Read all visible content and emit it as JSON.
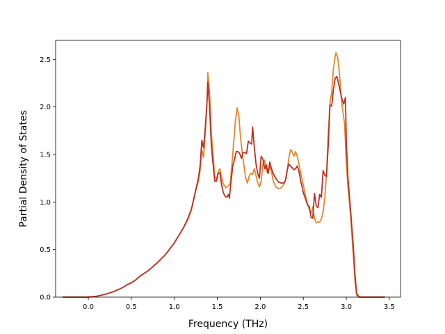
{
  "chart_data": {
    "type": "line",
    "xlabel": "Frequency (THz)",
    "ylabel": "Partial Density of States",
    "xlim": [
      -0.38,
      3.63
    ],
    "ylim": [
      0.0,
      2.7
    ],
    "xticks": [
      "0.0",
      "0.5",
      "1.0",
      "1.5",
      "2.0",
      "2.5",
      "3.0",
      "3.5"
    ],
    "yticks": [
      "0.0",
      "0.5",
      "1.0",
      "1.5",
      "2.0",
      "2.5"
    ],
    "grid": false,
    "legend": "none",
    "series": [
      {
        "color": "#e6862a",
        "points": [
          [
            -0.3,
            0
          ],
          [
            -0.1,
            0
          ],
          [
            0.0,
            0.0
          ],
          [
            0.1,
            0.01
          ],
          [
            0.2,
            0.03
          ],
          [
            0.3,
            0.06
          ],
          [
            0.4,
            0.1
          ],
          [
            0.45,
            0.13
          ],
          [
            0.5,
            0.15
          ],
          [
            0.55,
            0.18
          ],
          [
            0.6,
            0.22
          ],
          [
            0.7,
            0.28
          ],
          [
            0.8,
            0.36
          ],
          [
            0.9,
            0.45
          ],
          [
            1.0,
            0.57
          ],
          [
            1.1,
            0.72
          ],
          [
            1.15,
            0.8
          ],
          [
            1.2,
            0.92
          ],
          [
            1.25,
            1.12
          ],
          [
            1.28,
            1.22
          ],
          [
            1.3,
            1.33
          ],
          [
            1.32,
            1.55
          ],
          [
            1.34,
            1.47
          ],
          [
            1.36,
            1.72
          ],
          [
            1.38,
            2.05
          ],
          [
            1.39,
            2.36
          ],
          [
            1.41,
            2.15
          ],
          [
            1.43,
            1.72
          ],
          [
            1.45,
            1.5
          ],
          [
            1.47,
            1.27
          ],
          [
            1.49,
            1.24
          ],
          [
            1.51,
            1.32
          ],
          [
            1.53,
            1.35
          ],
          [
            1.55,
            1.26
          ],
          [
            1.57,
            1.19
          ],
          [
            1.6,
            1.15
          ],
          [
            1.63,
            1.17
          ],
          [
            1.65,
            1.2
          ],
          [
            1.67,
            1.4
          ],
          [
            1.69,
            1.62
          ],
          [
            1.71,
            1.85
          ],
          [
            1.73,
            1.99
          ],
          [
            1.75,
            1.9
          ],
          [
            1.77,
            1.68
          ],
          [
            1.79,
            1.52
          ],
          [
            1.81,
            1.38
          ],
          [
            1.83,
            1.25
          ],
          [
            1.85,
            1.2
          ],
          [
            1.87,
            1.27
          ],
          [
            1.89,
            1.3
          ],
          [
            1.91,
            1.29
          ],
          [
            1.93,
            1.35
          ],
          [
            1.95,
            1.28
          ],
          [
            1.97,
            1.2
          ],
          [
            1.99,
            1.16
          ],
          [
            2.01,
            1.22
          ],
          [
            2.03,
            1.4
          ],
          [
            2.05,
            1.44
          ],
          [
            2.07,
            1.33
          ],
          [
            2.09,
            1.3
          ],
          [
            2.11,
            1.37
          ],
          [
            2.13,
            1.32
          ],
          [
            2.15,
            1.22
          ],
          [
            2.18,
            1.16
          ],
          [
            2.21,
            1.14
          ],
          [
            2.24,
            1.15
          ],
          [
            2.27,
            1.18
          ],
          [
            2.3,
            1.25
          ],
          [
            2.33,
            1.45
          ],
          [
            2.35,
            1.55
          ],
          [
            2.37,
            1.53
          ],
          [
            2.39,
            1.48
          ],
          [
            2.41,
            1.53
          ],
          [
            2.43,
            1.48
          ],
          [
            2.45,
            1.4
          ],
          [
            2.47,
            1.3
          ],
          [
            2.5,
            1.18
          ],
          [
            2.53,
            1.05
          ],
          [
            2.55,
            0.97
          ],
          [
            2.57,
            0.92
          ],
          [
            2.59,
            0.88
          ],
          [
            2.61,
            0.95
          ],
          [
            2.63,
            0.83
          ],
          [
            2.65,
            0.78
          ],
          [
            2.67,
            0.79
          ],
          [
            2.69,
            0.79
          ],
          [
            2.71,
            0.82
          ],
          [
            2.73,
            0.9
          ],
          [
            2.75,
            1.05
          ],
          [
            2.77,
            1.3
          ],
          [
            2.79,
            1.72
          ],
          [
            2.81,
            2.05
          ],
          [
            2.83,
            2.15
          ],
          [
            2.85,
            2.4
          ],
          [
            2.87,
            2.53
          ],
          [
            2.88,
            2.57
          ],
          [
            2.9,
            2.52
          ],
          [
            2.92,
            2.35
          ],
          [
            2.94,
            2.1
          ],
          [
            2.96,
            1.95
          ],
          [
            2.98,
            1.82
          ],
          [
            3.0,
            1.4
          ],
          [
            3.02,
            1.15
          ],
          [
            3.05,
            0.85
          ],
          [
            3.08,
            0.45
          ],
          [
            3.1,
            0.18
          ],
          [
            3.12,
            0.02
          ],
          [
            3.15,
            0
          ],
          [
            3.3,
            0
          ],
          [
            3.45,
            0
          ]
        ]
      },
      {
        "color": "#b83026",
        "points": [
          [
            -0.3,
            0
          ],
          [
            -0.1,
            0
          ],
          [
            0.0,
            0.0
          ],
          [
            0.1,
            0.01
          ],
          [
            0.2,
            0.03
          ],
          [
            0.3,
            0.06
          ],
          [
            0.4,
            0.1
          ],
          [
            0.45,
            0.13
          ],
          [
            0.5,
            0.15
          ],
          [
            0.55,
            0.18
          ],
          [
            0.6,
            0.22
          ],
          [
            0.7,
            0.28
          ],
          [
            0.8,
            0.36
          ],
          [
            0.9,
            0.45
          ],
          [
            1.0,
            0.57
          ],
          [
            1.1,
            0.72
          ],
          [
            1.15,
            0.81
          ],
          [
            1.2,
            0.93
          ],
          [
            1.25,
            1.13
          ],
          [
            1.28,
            1.25
          ],
          [
            1.3,
            1.38
          ],
          [
            1.32,
            1.65
          ],
          [
            1.34,
            1.57
          ],
          [
            1.36,
            1.78
          ],
          [
            1.38,
            2.05
          ],
          [
            1.39,
            2.26
          ],
          [
            1.41,
            2.0
          ],
          [
            1.43,
            1.6
          ],
          [
            1.45,
            1.4
          ],
          [
            1.47,
            1.22
          ],
          [
            1.49,
            1.22
          ],
          [
            1.51,
            1.3
          ],
          [
            1.53,
            1.31
          ],
          [
            1.55,
            1.18
          ],
          [
            1.57,
            1.1
          ],
          [
            1.59,
            1.06
          ],
          [
            1.61,
            1.05
          ],
          [
            1.63,
            1.08
          ],
          [
            1.64,
            1.04
          ],
          [
            1.66,
            1.22
          ],
          [
            1.68,
            1.38
          ],
          [
            1.7,
            1.45
          ],
          [
            1.72,
            1.53
          ],
          [
            1.74,
            1.53
          ],
          [
            1.76,
            1.51
          ],
          [
            1.78,
            1.46
          ],
          [
            1.8,
            1.52
          ],
          [
            1.82,
            1.52
          ],
          [
            1.84,
            1.51
          ],
          [
            1.86,
            1.64
          ],
          [
            1.88,
            1.62
          ],
          [
            1.9,
            1.61
          ],
          [
            1.91,
            1.79
          ],
          [
            1.93,
            1.58
          ],
          [
            1.95,
            1.4
          ],
          [
            1.97,
            1.3
          ],
          [
            1.99,
            1.25
          ],
          [
            2.01,
            1.48
          ],
          [
            2.03,
            1.45
          ],
          [
            2.05,
            1.35
          ],
          [
            2.07,
            1.39
          ],
          [
            2.09,
            1.3
          ],
          [
            2.11,
            1.42
          ],
          [
            2.13,
            1.35
          ],
          [
            2.15,
            1.3
          ],
          [
            2.18,
            1.25
          ],
          [
            2.21,
            1.21
          ],
          [
            2.24,
            1.2
          ],
          [
            2.27,
            1.2
          ],
          [
            2.29,
            1.22
          ],
          [
            2.31,
            1.32
          ],
          [
            2.33,
            1.4
          ],
          [
            2.35,
            1.38
          ],
          [
            2.37,
            1.36
          ],
          [
            2.39,
            1.34
          ],
          [
            2.41,
            1.35
          ],
          [
            2.43,
            1.38
          ],
          [
            2.45,
            1.32
          ],
          [
            2.47,
            1.22
          ],
          [
            2.5,
            1.1
          ],
          [
            2.53,
            1.02
          ],
          [
            2.55,
            0.97
          ],
          [
            2.57,
            0.95
          ],
          [
            2.59,
            0.84
          ],
          [
            2.61,
            0.83
          ],
          [
            2.63,
            1.09
          ],
          [
            2.65,
            0.96
          ],
          [
            2.67,
            0.94
          ],
          [
            2.69,
            1.08
          ],
          [
            2.71,
            1.05
          ],
          [
            2.73,
            1.33
          ],
          [
            2.75,
            1.28
          ],
          [
            2.77,
            1.27
          ],
          [
            2.79,
            1.6
          ],
          [
            2.81,
            2.02
          ],
          [
            2.83,
            2.01
          ],
          [
            2.85,
            2.18
          ],
          [
            2.87,
            2.3
          ],
          [
            2.89,
            2.32
          ],
          [
            2.91,
            2.25
          ],
          [
            2.93,
            2.16
          ],
          [
            2.95,
            2.08
          ],
          [
            2.97,
            2.03
          ],
          [
            2.99,
            2.1
          ],
          [
            3.0,
            1.62
          ],
          [
            3.02,
            1.25
          ],
          [
            3.05,
            0.9
          ],
          [
            3.08,
            0.55
          ],
          [
            3.1,
            0.25
          ],
          [
            3.12,
            0.04
          ],
          [
            3.15,
            0
          ],
          [
            3.3,
            0
          ],
          [
            3.45,
            0
          ]
        ]
      }
    ]
  }
}
